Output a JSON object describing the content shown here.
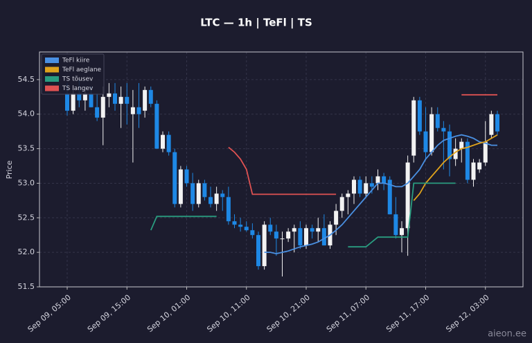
{
  "chart_data": {
    "type": "candlestick",
    "title": "LTC — 1h  |  TeFl  |  TS",
    "y_label": "Price",
    "watermark": "aieon.ee",
    "categories": [
      "Sep 09, 05:00",
      null,
      null,
      null,
      null,
      null,
      null,
      null,
      null,
      null,
      "Sep 09, 15:00",
      null,
      null,
      null,
      null,
      null,
      null,
      null,
      null,
      null,
      "Sep 10, 01:00",
      null,
      null,
      null,
      null,
      null,
      null,
      null,
      null,
      null,
      "Sep 10, 11:00",
      null,
      null,
      null,
      null,
      null,
      null,
      null,
      null,
      null,
      "Sep 10, 21:00",
      null,
      null,
      null,
      null,
      null,
      null,
      null,
      null,
      null,
      "Sep 11, 07:00",
      null,
      null,
      null,
      null,
      null,
      null,
      null,
      null,
      null,
      "Sep 11, 17:00",
      null,
      null,
      null,
      null,
      null,
      null,
      null,
      null,
      null,
      "Sep 12, 03:00",
      null,
      null
    ],
    "open": [
      54.3,
      54.05,
      54.3,
      54.2,
      54.3,
      54.1,
      53.95,
      54.25,
      54.3,
      54.15,
      54.25,
      54.0,
      54.1,
      54.05,
      54.35,
      54.15,
      53.5,
      53.7,
      53.45,
      52.7,
      53.2,
      53.0,
      52.7,
      53.0,
      52.8,
      52.7,
      52.85,
      52.8,
      52.45,
      52.4,
      52.37,
      52.32,
      52.25,
      51.8,
      52.4,
      52.3,
      52.2,
      52.2,
      52.3,
      52.35,
      52.1,
      52.35,
      52.3,
      52.35,
      52.1,
      52.4,
      52.6,
      52.8,
      52.85,
      53.05,
      52.85,
      53.0,
      53.0,
      53.1,
      53.05,
      52.55,
      52.25,
      52.35,
      53.4,
      54.2,
      53.75,
      53.45,
      54.0,
      53.8,
      53.75,
      53.35,
      53.5,
      53.6,
      53.05,
      53.2,
      53.3,
      53.7,
      54.0
    ],
    "high": [
      54.45,
      54.4,
      54.5,
      54.35,
      54.4,
      54.3,
      54.4,
      54.45,
      54.45,
      54.4,
      54.45,
      54.35,
      54.45,
      54.4,
      54.4,
      54.2,
      53.75,
      53.75,
      53.5,
      53.25,
      53.25,
      53.15,
      53.05,
      53.05,
      52.95,
      52.95,
      52.9,
      52.95,
      52.55,
      52.5,
      52.45,
      52.42,
      52.3,
      52.45,
      52.5,
      52.4,
      52.3,
      52.35,
      52.4,
      52.45,
      52.4,
      52.4,
      52.5,
      52.55,
      52.45,
      52.7,
      52.85,
      52.9,
      53.1,
      53.1,
      53.1,
      53.1,
      53.2,
      53.15,
      53.1,
      52.8,
      52.45,
      53.4,
      54.25,
      54.25,
      54.1,
      54.1,
      54.1,
      53.9,
      53.85,
      53.65,
      53.65,
      53.65,
      53.35,
      53.35,
      53.9,
      54.05,
      54.05
    ],
    "low": [
      53.98,
      54.0,
      54.1,
      54.05,
      54.1,
      53.9,
      53.55,
      54.1,
      54.05,
      53.8,
      53.85,
      53.3,
      53.8,
      53.95,
      54.1,
      53.5,
      53.45,
      53.4,
      52.65,
      52.65,
      52.95,
      52.6,
      52.65,
      52.75,
      52.65,
      52.6,
      52.6,
      52.4,
      52.35,
      52.3,
      52.3,
      52.2,
      51.75,
      51.75,
      52.25,
      51.95,
      51.65,
      52.15,
      52.0,
      52.05,
      52.05,
      52.2,
      52.15,
      52.1,
      52.05,
      52.25,
      52.5,
      52.55,
      52.7,
      52.8,
      52.8,
      52.85,
      52.9,
      52.9,
      52.55,
      52.2,
      52.0,
      51.95,
      53.3,
      53.7,
      53.35,
      53.4,
      53.75,
      53.2,
      53.1,
      53.25,
      53.3,
      53.0,
      52.95,
      53.15,
      53.25,
      53.65,
      53.7
    ],
    "close": [
      54.05,
      54.3,
      54.2,
      54.3,
      54.1,
      53.95,
      54.25,
      54.3,
      54.15,
      54.25,
      54.15,
      54.1,
      54.0,
      54.35,
      54.15,
      53.5,
      53.7,
      53.45,
      52.7,
      53.2,
      53.0,
      52.7,
      53.0,
      52.8,
      52.7,
      52.85,
      52.8,
      52.45,
      52.4,
      52.37,
      52.32,
      52.25,
      51.8,
      52.4,
      52.3,
      52.2,
      52.2,
      52.3,
      52.35,
      52.1,
      52.35,
      52.3,
      52.35,
      52.1,
      52.4,
      52.6,
      52.8,
      52.85,
      53.05,
      52.85,
      53.0,
      52.95,
      53.1,
      53.0,
      52.55,
      52.25,
      52.35,
      53.3,
      54.2,
      53.75,
      53.45,
      54.0,
      53.8,
      53.75,
      53.35,
      53.5,
      53.6,
      53.05,
      53.3,
      53.3,
      53.6,
      54.0,
      53.75
    ],
    "up_color": "#f2f2f2",
    "down_color": "#1e88e5",
    "series": [
      {
        "name": "TeFl kiire",
        "color": "#4a90e2",
        "values": [
          null,
          null,
          null,
          null,
          null,
          null,
          null,
          null,
          null,
          null,
          null,
          null,
          null,
          null,
          null,
          null,
          null,
          null,
          null,
          null,
          null,
          null,
          null,
          null,
          null,
          null,
          null,
          null,
          null,
          null,
          null,
          null,
          null,
          52.0,
          52.0,
          51.98,
          52.0,
          52.02,
          52.05,
          52.08,
          52.1,
          52.12,
          52.15,
          52.2,
          52.25,
          52.32,
          52.4,
          52.5,
          52.6,
          52.7,
          52.8,
          52.9,
          53.0,
          53.0,
          52.98,
          52.95,
          52.95,
          53.0,
          53.1,
          53.2,
          53.35,
          53.45,
          53.55,
          53.62,
          53.65,
          53.68,
          53.7,
          53.68,
          53.65,
          53.6,
          53.58,
          53.55,
          53.55
        ]
      },
      {
        "name": "TeFl aeglane",
        "color": "#e0a31c",
        "values": [
          null,
          null,
          null,
          null,
          null,
          null,
          null,
          null,
          null,
          null,
          null,
          null,
          null,
          null,
          null,
          null,
          null,
          null,
          null,
          null,
          null,
          null,
          null,
          null,
          null,
          null,
          null,
          null,
          null,
          null,
          null,
          null,
          null,
          null,
          null,
          null,
          null,
          null,
          null,
          null,
          null,
          null,
          null,
          null,
          null,
          null,
          null,
          null,
          null,
          null,
          null,
          null,
          null,
          null,
          null,
          null,
          null,
          null,
          52.75,
          52.85,
          53.0,
          53.1,
          53.2,
          53.3,
          53.38,
          53.45,
          53.5,
          53.52,
          53.55,
          53.58,
          53.6,
          53.65,
          53.7
        ]
      },
      {
        "name": "TS tõusev",
        "color": "#2a9d80",
        "values": [
          null,
          null,
          null,
          null,
          null,
          null,
          null,
          null,
          null,
          null,
          null,
          null,
          null,
          null,
          52.32,
          52.52,
          52.52,
          52.52,
          52.52,
          52.52,
          52.52,
          52.52,
          52.52,
          52.52,
          52.52,
          52.52,
          null,
          null,
          null,
          null,
          null,
          null,
          null,
          null,
          null,
          null,
          null,
          null,
          null,
          null,
          null,
          null,
          null,
          null,
          null,
          null,
          null,
          52.08,
          52.08,
          52.08,
          52.08,
          52.15,
          52.22,
          52.22,
          52.22,
          52.22,
          52.22,
          52.22,
          53.0,
          53.0,
          53.0,
          53.0,
          53.0,
          53.0,
          53.0,
          53.0,
          null,
          null,
          null,
          null,
          null,
          null,
          null
        ]
      },
      {
        "name": "TS langev",
        "color": "#e05252",
        "values": [
          null,
          null,
          null,
          null,
          null,
          null,
          null,
          null,
          null,
          null,
          null,
          null,
          null,
          null,
          null,
          null,
          null,
          null,
          null,
          null,
          null,
          null,
          null,
          null,
          null,
          null,
          null,
          53.52,
          53.45,
          53.35,
          53.2,
          52.84,
          52.84,
          52.84,
          52.84,
          52.84,
          52.84,
          52.84,
          52.84,
          52.84,
          52.84,
          52.84,
          52.84,
          52.84,
          52.84,
          52.84,
          null,
          null,
          null,
          null,
          null,
          null,
          null,
          null,
          null,
          null,
          null,
          null,
          null,
          null,
          null,
          null,
          null,
          null,
          null,
          null,
          54.28,
          54.28,
          54.28,
          54.28,
          54.28,
          54.28,
          54.28
        ]
      }
    ],
    "ylim": [
      51.5,
      54.9
    ],
    "yticks": [
      51.5,
      {
        "value": 52,
        "label": "52.0"
      },
      52.5,
      {
        "value": 53,
        "label": "53.0"
      },
      53.5,
      {
        "value": 54,
        "label": "54.0"
      },
      54.5
    ],
    "grid": true,
    "legend": "upper left"
  }
}
